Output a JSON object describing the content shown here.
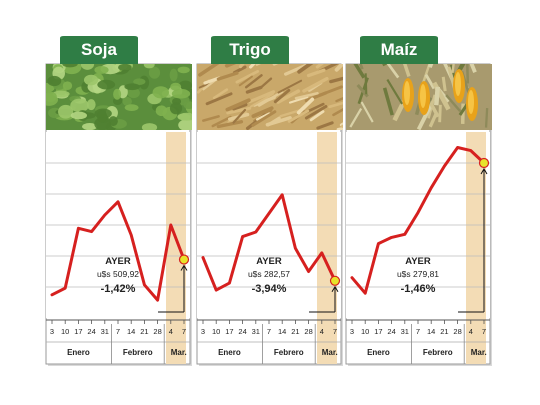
{
  "colors": {
    "tab_green": "#2f7d45",
    "line_red": "#d6201f",
    "highlight": "#f3dcb5",
    "grid": "#bdbdbd",
    "marker": "#e8e32b"
  },
  "chart_data": [
    {
      "type": "line",
      "title": "Soja",
      "photo": "soybean-field",
      "x": [
        "3",
        "10",
        "17",
        "24",
        "31",
        "7",
        "14",
        "21",
        "28",
        "4",
        "7"
      ],
      "months": [
        "Enero",
        "Febrero",
        "Mar."
      ],
      "values": [
        3.5,
        4.5,
        13.5,
        13.0,
        15.5,
        17.5,
        12.5,
        5.0,
        2.7,
        14.0,
        8.8
      ],
      "ylim": [
        0,
        28
      ],
      "highlight_from_index": 9,
      "annotation": {
        "label": "AYER",
        "price": "u$s 509,92",
        "change": "-1,42%"
      }
    },
    {
      "type": "line",
      "title": "Trigo",
      "photo": "wheat-field",
      "x": [
        "3",
        "10",
        "17",
        "24",
        "31",
        "7",
        "14",
        "21",
        "28",
        "4",
        "7"
      ],
      "months": [
        "Enero",
        "Febrero",
        "Mar."
      ],
      "values": [
        7.0,
        0.0,
        1.5,
        11.5,
        12.5,
        16.5,
        20.5,
        9.0,
        4.0,
        8.0,
        2.0
      ],
      "ylim": [
        -6,
        34
      ],
      "highlight_from_index": 9,
      "annotation": {
        "label": "AYER",
        "price": "u$s 282,57",
        "change": "-3,94%"
      }
    },
    {
      "type": "line",
      "title": "Maíz",
      "photo": "corn-field",
      "x": [
        "3",
        "10",
        "17",
        "24",
        "31",
        "7",
        "14",
        "21",
        "28",
        "4",
        "7"
      ],
      "months": [
        "Enero",
        "Febrero",
        "Mar."
      ],
      "values": [
        5.5,
        3.0,
        11.0,
        12.0,
        12.5,
        16.0,
        20.0,
        23.5,
        26.5,
        26.0,
        24.0
      ],
      "ylim": [
        -1,
        29
      ],
      "highlight_from_index": 9,
      "annotation": {
        "label": "AYER",
        "price": "u$s 279,81",
        "change": "-1,46%"
      }
    }
  ]
}
